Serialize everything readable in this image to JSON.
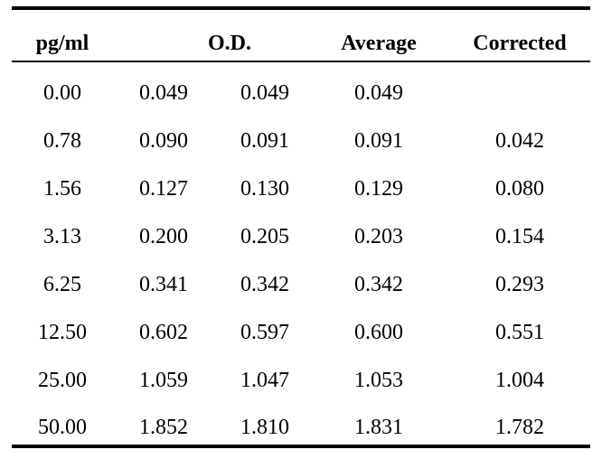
{
  "table": {
    "headers": {
      "concentration": "pg/ml",
      "od": "O.D.",
      "average": "Average",
      "corrected": "Corrected"
    },
    "rows": [
      {
        "conc": "0.00",
        "od1": "0.049",
        "od2": "0.049",
        "avg": "0.049",
        "corr": ""
      },
      {
        "conc": "0.78",
        "od1": "0.090",
        "od2": "0.091",
        "avg": "0.091",
        "corr": "0.042"
      },
      {
        "conc": "1.56",
        "od1": "0.127",
        "od2": "0.130",
        "avg": "0.129",
        "corr": "0.080"
      },
      {
        "conc": "3.13",
        "od1": "0.200",
        "od2": "0.205",
        "avg": "0.203",
        "corr": "0.154"
      },
      {
        "conc": "6.25",
        "od1": "0.341",
        "od2": "0.342",
        "avg": "0.342",
        "corr": "0.293"
      },
      {
        "conc": "12.50",
        "od1": "0.602",
        "od2": "0.597",
        "avg": "0.600",
        "corr": "0.551"
      },
      {
        "conc": "25.00",
        "od1": "1.059",
        "od2": "1.047",
        "avg": "1.053",
        "corr": "1.004"
      },
      {
        "conc": "50.00",
        "od1": "1.852",
        "od2": "1.810",
        "avg": "1.831",
        "corr": "1.782"
      }
    ]
  }
}
